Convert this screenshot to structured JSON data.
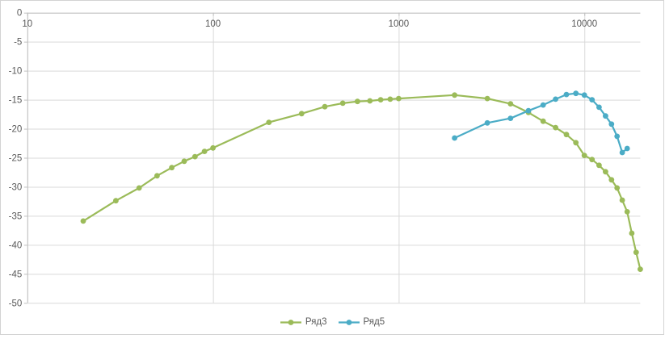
{
  "chart_data": {
    "type": "line",
    "title": "",
    "xlabel": "",
    "ylabel": "",
    "x_scale": "log10",
    "x_range": [
      10,
      20000
    ],
    "y_range": [
      -50,
      0
    ],
    "grid": true,
    "legend_position": "bottom-center",
    "x_tick_labels": [
      "10",
      "100",
      "1000",
      "10000"
    ],
    "x_tick_values": [
      10,
      100,
      1000,
      10000
    ],
    "y_tick_labels": [
      "0",
      "-5",
      "-10",
      "-15",
      "-20",
      "-25",
      "-30",
      "-35",
      "-40",
      "-45",
      "-50"
    ],
    "y_tick_values": [
      0,
      -5,
      -10,
      -15,
      -20,
      -25,
      -30,
      -35,
      -40,
      -45,
      -50
    ],
    "style": {
      "gridline_color": "#d9d9d9",
      "axis_color": "#bfbfbf",
      "tick_label_color": "#595959",
      "background": "#ffffff"
    },
    "series": [
      {
        "name": "Ряд3",
        "color": "#9bbb59",
        "marker": "circle",
        "points": [
          [
            20,
            -35.9
          ],
          [
            30,
            -32.4
          ],
          [
            40,
            -30.2
          ],
          [
            50,
            -28.1
          ],
          [
            60,
            -26.7
          ],
          [
            70,
            -25.6
          ],
          [
            80,
            -24.8
          ],
          [
            90,
            -23.9
          ],
          [
            100,
            -23.3
          ],
          [
            200,
            -18.9
          ],
          [
            300,
            -17.4
          ],
          [
            400,
            -16.2
          ],
          [
            500,
            -15.6
          ],
          [
            600,
            -15.3
          ],
          [
            700,
            -15.2
          ],
          [
            800,
            -15.0
          ],
          [
            900,
            -14.9
          ],
          [
            1000,
            -14.8
          ],
          [
            2000,
            -14.2
          ],
          [
            3000,
            -14.8
          ],
          [
            4000,
            -15.7
          ],
          [
            5000,
            -17.2
          ],
          [
            6000,
            -18.7
          ],
          [
            7000,
            -19.8
          ],
          [
            8000,
            -21.0
          ],
          [
            9000,
            -22.4
          ],
          [
            10000,
            -24.6
          ],
          [
            11000,
            -25.3
          ],
          [
            12000,
            -26.3
          ],
          [
            13000,
            -27.4
          ],
          [
            14000,
            -28.8
          ],
          [
            15000,
            -30.2
          ],
          [
            16000,
            -32.3
          ],
          [
            17000,
            -34.3
          ],
          [
            18000,
            -38.0
          ],
          [
            19000,
            -41.3
          ],
          [
            20000,
            -44.2
          ]
        ]
      },
      {
        "name": "Ряд5",
        "color": "#4bacc6",
        "marker": "circle",
        "points": [
          [
            2000,
            -21.6
          ],
          [
            3000,
            -19.0
          ],
          [
            4000,
            -18.2
          ],
          [
            5000,
            -16.9
          ],
          [
            6000,
            -15.9
          ],
          [
            7000,
            -14.9
          ],
          [
            8000,
            -14.1
          ],
          [
            9000,
            -13.9
          ],
          [
            10000,
            -14.2
          ],
          [
            11000,
            -15.0
          ],
          [
            12000,
            -16.3
          ],
          [
            13000,
            -17.8
          ],
          [
            14000,
            -19.2
          ],
          [
            15000,
            -21.3
          ],
          [
            16000,
            -24.1
          ],
          [
            17000,
            -23.4
          ]
        ]
      }
    ]
  }
}
